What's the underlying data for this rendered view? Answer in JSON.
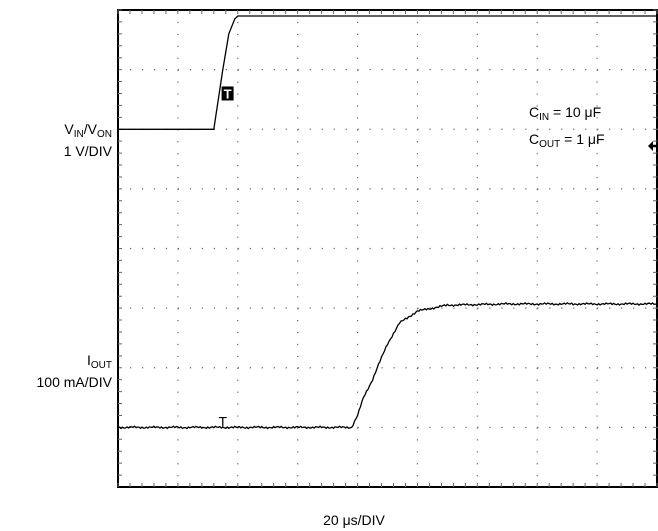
{
  "chart_data": {
    "type": "line",
    "title": "",
    "grid": true,
    "divisions": {
      "x": 9,
      "y": 8
    },
    "x_scale": {
      "value": "20",
      "unit_prefix": "μ",
      "unit_suffix": "s/DIV"
    },
    "channels": [
      {
        "name_main": "V",
        "name_sub1": "IN",
        "name_sep": "/V",
        "name_sub2": "ON",
        "scale": "1 V/DIV",
        "trigger_marker": "T",
        "color": "#000000",
        "x_div": [
          0,
          1.6,
          1.75,
          1.85,
          1.95,
          2.0,
          9.0
        ],
        "y_div": [
          6.0,
          6.0,
          7.0,
          7.6,
          7.85,
          7.9,
          7.9
        ]
      },
      {
        "name_main": "I",
        "name_sub1": "OUT",
        "scale": "100 mA/DIV",
        "trigger_marker": "T",
        "color": "#000000",
        "x_div": [
          0,
          3.9,
          3.95,
          4.0,
          4.1,
          4.25,
          4.35,
          4.5,
          4.7,
          5.0,
          5.5,
          6.5,
          9.0
        ],
        "y_div": [
          1.0,
          1.0,
          1.1,
          1.2,
          1.5,
          1.8,
          2.05,
          2.4,
          2.75,
          2.95,
          3.05,
          3.07,
          3.07
        ],
        "noise": 0.02
      }
    ],
    "annotations": [
      {
        "main": "C",
        "sub": "IN",
        "rest": " = 10 ",
        "unit_prefix": "μ",
        "unit": "F"
      },
      {
        "main": "C",
        "sub": "OUT",
        "rest": " = 1 ",
        "unit_prefix": "μ",
        "unit": "F"
      }
    ]
  }
}
